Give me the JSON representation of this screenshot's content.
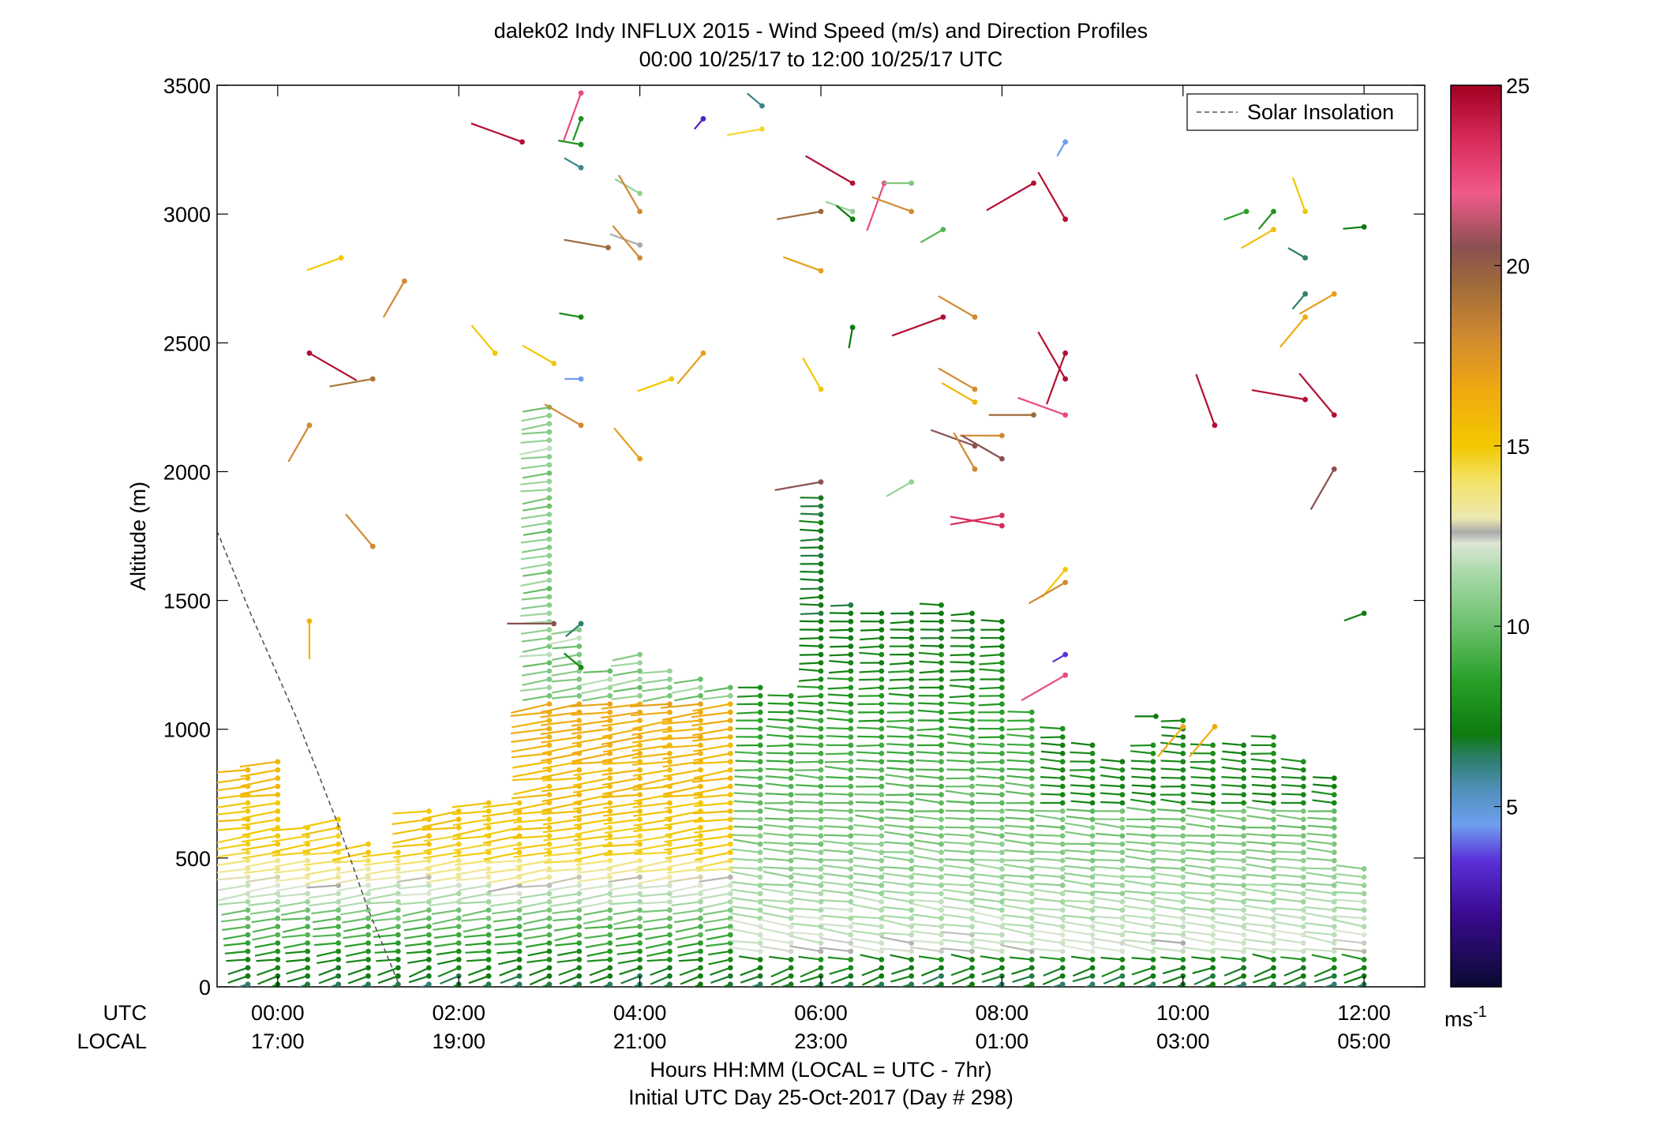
{
  "chart_data": {
    "type": "wind-barb-profile",
    "title": "dalek02 Indy INFLUX 2015 - Wind Speed (m/s) and Direction Profiles",
    "subtitle": "00:00 10/25/17 to 12:00 10/25/17  UTC",
    "ylabel": "Altitude (m)",
    "ylim": [
      0,
      3500
    ],
    "y_ticks": [
      "0",
      "500",
      "1000",
      "1500",
      "2000",
      "2500",
      "3000",
      "3500"
    ],
    "y_tick_values": [
      0,
      500,
      1000,
      1500,
      2000,
      2500,
      3000,
      3500
    ],
    "xlim_hours_utc": [
      -0.67,
      12.67
    ],
    "x_tick_hours_utc": [
      0,
      2,
      4,
      6,
      8,
      10,
      12
    ],
    "x_ticks_utc": [
      "00:00",
      "02:00",
      "04:00",
      "06:00",
      "08:00",
      "10:00",
      "12:00"
    ],
    "x_ticks_local": [
      "17:00",
      "19:00",
      "21:00",
      "23:00",
      "01:00",
      "03:00",
      "05:00"
    ],
    "utc_row_label": "UTC",
    "local_row_label": "LOCAL",
    "xlabel": "Hours HH:MM  (LOCAL = UTC - 7hr)",
    "footer": "Initial UTC Day 25-Oct-2017 (Day # 298)",
    "legend": {
      "label": "Solar Insolation",
      "placement": "top-right",
      "style": "dashed",
      "color": "#555555"
    },
    "colorbar": {
      "ticks": [
        "5",
        "10",
        "15",
        "20",
        "25"
      ],
      "tick_values": [
        5,
        10,
        15,
        20,
        25
      ],
      "range": [
        0,
        25
      ],
      "unit": "ms",
      "unit_exp": "-1",
      "stops": [
        {
          "v": 0,
          "c": "#0a0a30"
        },
        {
          "v": 2,
          "c": "#3a0a90"
        },
        {
          "v": 3.5,
          "c": "#5a30d8"
        },
        {
          "v": 4.5,
          "c": "#6f9fef"
        },
        {
          "v": 5.5,
          "c": "#4f8fb8"
        },
        {
          "v": 6.3,
          "c": "#2e7e6e"
        },
        {
          "v": 7,
          "c": "#0f7a0f"
        },
        {
          "v": 8.5,
          "c": "#28a028"
        },
        {
          "v": 10,
          "c": "#6cbf6c"
        },
        {
          "v": 11.5,
          "c": "#a9daa9"
        },
        {
          "v": 12.3,
          "c": "#dde6d5"
        },
        {
          "v": 12.6,
          "c": "#aaaaaa"
        },
        {
          "v": 13,
          "c": "#ece8b0"
        },
        {
          "v": 14,
          "c": "#f3e36a"
        },
        {
          "v": 15,
          "c": "#f2c800"
        },
        {
          "v": 16.5,
          "c": "#f0aa10"
        },
        {
          "v": 18,
          "c": "#d08a30"
        },
        {
          "v": 19.5,
          "c": "#9e6a3a"
        },
        {
          "v": 20.5,
          "c": "#8a5050"
        },
        {
          "v": 22,
          "c": "#f05a8a"
        },
        {
          "v": 23.5,
          "c": "#d82a5a"
        },
        {
          "v": 25,
          "c": "#a00020"
        }
      ]
    },
    "solar_insolation_line": [
      [
        -0.67,
        1770
      ],
      [
        -0.3,
        1450
      ],
      [
        0.2,
        1050
      ],
      [
        0.7,
        600
      ],
      [
        1.0,
        300
      ],
      [
        1.35,
        0
      ]
    ],
    "sample_times_hours_utc": [
      -0.33,
      0,
      0.33,
      0.67,
      1,
      1.33,
      1.67,
      2,
      2.33,
      2.67,
      3,
      3.33,
      3.67,
      4,
      4.33,
      4.67,
      5,
      5.33,
      5.67,
      6,
      6.33,
      6.67,
      7,
      7.33,
      7.67,
      8,
      8.33,
      8.67,
      9,
      9.33,
      9.67,
      10,
      10.33,
      10.67,
      11,
      11.33,
      11.67,
      12
    ],
    "profile_tops_m": [
      860,
      880,
      640,
      670,
      560,
      540,
      700,
      690,
      740,
      720,
      2260,
      1400,
      1240,
      1300,
      1240,
      1200,
      1180,
      1180,
      1150,
      1900,
      1490,
      1460,
      1450,
      1500,
      1460,
      1430,
      1080,
      1020,
      960,
      900,
      960,
      1050,
      940,
      960,
      970,
      900,
      840,
      460
    ],
    "sparse_barbs": [
      {
        "t": 0.35,
        "alt": 2460,
        "speed": 24.5,
        "dir": 120
      },
      {
        "t": 0.35,
        "alt": 2180,
        "speed": 18,
        "dir": 210
      },
      {
        "t": 0.35,
        "alt": 1420,
        "speed": 16,
        "dir": 180
      },
      {
        "t": 0.7,
        "alt": 2830,
        "speed": 15,
        "dir": 250
      },
      {
        "t": 1.05,
        "alt": 2360,
        "speed": 19,
        "dir": 260
      },
      {
        "t": 1.05,
        "alt": 1710,
        "speed": 18,
        "dir": 320
      },
      {
        "t": 1.4,
        "alt": 2740,
        "speed": 18,
        "dir": 210
      },
      {
        "t": 2.4,
        "alt": 2460,
        "speed": 15,
        "dir": 320
      },
      {
        "t": 2.7,
        "alt": 3280,
        "speed": 24.5,
        "dir": 290
      },
      {
        "t": 3.05,
        "alt": 2420,
        "speed": 15,
        "dir": 300
      },
      {
        "t": 3.05,
        "alt": 1410,
        "speed": 20.5,
        "dir": 270
      },
      {
        "t": 3.35,
        "alt": 3470,
        "speed": 22.5,
        "dir": 200
      },
      {
        "t": 3.35,
        "alt": 3370,
        "speed": 8,
        "dir": 200
      },
      {
        "t": 3.35,
        "alt": 3270,
        "speed": 8,
        "dir": 280
      },
      {
        "t": 3.35,
        "alt": 3180,
        "speed": 6,
        "dir": 300
      },
      {
        "t": 3.35,
        "alt": 2600,
        "speed": 7.5,
        "dir": 280
      },
      {
        "t": 3.35,
        "alt": 2360,
        "speed": 4.5,
        "dir": 270
      },
      {
        "t": 3.35,
        "alt": 2180,
        "speed": 18,
        "dir": 300
      },
      {
        "t": 3.35,
        "alt": 1410,
        "speed": 6.3,
        "dir": 230
      },
      {
        "t": 3.35,
        "alt": 1240,
        "speed": 7.5,
        "dir": 310
      },
      {
        "t": 3.65,
        "alt": 2870,
        "speed": 19.5,
        "dir": 280
      },
      {
        "t": 4.0,
        "alt": 3080,
        "speed": 11,
        "dir": 300
      },
      {
        "t": 4.0,
        "alt": 3010,
        "speed": 18,
        "dir": 330
      },
      {
        "t": 4.0,
        "alt": 2880,
        "speed": 12.6,
        "dir": 290
      },
      {
        "t": 4.0,
        "alt": 2830,
        "speed": 18,
        "dir": 320
      },
      {
        "t": 4.0,
        "alt": 2050,
        "speed": 17,
        "dir": 320
      },
      {
        "t": 4.35,
        "alt": 2360,
        "speed": 15,
        "dir": 250
      },
      {
        "t": 4.7,
        "alt": 3370,
        "speed": 3,
        "dir": 220
      },
      {
        "t": 4.7,
        "alt": 2460,
        "speed": 17,
        "dir": 220
      },
      {
        "t": 5.35,
        "alt": 3330,
        "speed": 14.5,
        "dir": 260
      },
      {
        "t": 5.35,
        "alt": 3420,
        "speed": 6,
        "dir": 310
      },
      {
        "t": 6.0,
        "alt": 3010,
        "speed": 19.5,
        "dir": 260
      },
      {
        "t": 6.0,
        "alt": 2780,
        "speed": 17,
        "dir": 290
      },
      {
        "t": 6.0,
        "alt": 2320,
        "speed": 15,
        "dir": 330
      },
      {
        "t": 6.0,
        "alt": 1960,
        "speed": 20.5,
        "dir": 260
      },
      {
        "t": 6.35,
        "alt": 3120,
        "speed": 24.5,
        "dir": 300
      },
      {
        "t": 6.35,
        "alt": 3010,
        "speed": 11,
        "dir": 290
      },
      {
        "t": 6.35,
        "alt": 2980,
        "speed": 7,
        "dir": 310
      },
      {
        "t": 6.35,
        "alt": 2560,
        "speed": 7,
        "dir": 190
      },
      {
        "t": 6.7,
        "alt": 3120,
        "speed": 22.5,
        "dir": 200
      },
      {
        "t": 7.0,
        "alt": 3120,
        "speed": 10.5,
        "dir": 270
      },
      {
        "t": 7.0,
        "alt": 3010,
        "speed": 18,
        "dir": 290
      },
      {
        "t": 7.0,
        "alt": 1960,
        "speed": 11,
        "dir": 240
      },
      {
        "t": 7.35,
        "alt": 2940,
        "speed": 9.5,
        "dir": 240
      },
      {
        "t": 7.35,
        "alt": 2600,
        "speed": 24.5,
        "dir": 250
      },
      {
        "t": 7.7,
        "alt": 2600,
        "speed": 18,
        "dir": 300
      },
      {
        "t": 7.7,
        "alt": 2320,
        "speed": 18,
        "dir": 300
      },
      {
        "t": 7.7,
        "alt": 2270,
        "speed": 16,
        "dir": 300
      },
      {
        "t": 7.7,
        "alt": 2100,
        "speed": 20.5,
        "dir": 290
      },
      {
        "t": 7.7,
        "alt": 2010,
        "speed": 18,
        "dir": 330
      },
      {
        "t": 8.0,
        "alt": 2140,
        "speed": 18,
        "dir": 270
      },
      {
        "t": 8.0,
        "alt": 2050,
        "speed": 20.5,
        "dir": 300
      },
      {
        "t": 8.0,
        "alt": 1830,
        "speed": 23.5,
        "dir": 260
      },
      {
        "t": 8.0,
        "alt": 1790,
        "speed": 23.5,
        "dir": 280
      },
      {
        "t": 8.35,
        "alt": 3120,
        "speed": 24.5,
        "dir": 240
      },
      {
        "t": 8.35,
        "alt": 2220,
        "speed": 19.5,
        "dir": 270
      },
      {
        "t": 8.7,
        "alt": 3280,
        "speed": 4.5,
        "dir": 210
      },
      {
        "t": 8.7,
        "alt": 2980,
        "speed": 24.5,
        "dir": 330
      },
      {
        "t": 8.7,
        "alt": 2460,
        "speed": 24.5,
        "dir": 200
      },
      {
        "t": 8.7,
        "alt": 2360,
        "speed": 24.5,
        "dir": 330
      },
      {
        "t": 8.7,
        "alt": 2220,
        "speed": 22.5,
        "dir": 290
      },
      {
        "t": 8.7,
        "alt": 1620,
        "speed": 15,
        "dir": 220
      },
      {
        "t": 8.7,
        "alt": 1570,
        "speed": 18,
        "dir": 240
      },
      {
        "t": 8.7,
        "alt": 1290,
        "speed": 3.5,
        "dir": 240
      },
      {
        "t": 8.7,
        "alt": 1210,
        "speed": 22.5,
        "dir": 240
      },
      {
        "t": 9.7,
        "alt": 1050,
        "speed": 7,
        "dir": 270
      },
      {
        "t": 10.0,
        "alt": 1010,
        "speed": 16.5,
        "dir": 220
      },
      {
        "t": 10.35,
        "alt": 2180,
        "speed": 24.5,
        "dir": 340
      },
      {
        "t": 10.35,
        "alt": 1010,
        "speed": 16.5,
        "dir": 220
      },
      {
        "t": 10.7,
        "alt": 3010,
        "speed": 8.5,
        "dir": 250
      },
      {
        "t": 11.0,
        "alt": 3010,
        "speed": 8,
        "dir": 220
      },
      {
        "t": 11.0,
        "alt": 2940,
        "speed": 15.5,
        "dir": 240
      },
      {
        "t": 11.35,
        "alt": 3010,
        "speed": 15,
        "dir": 340
      },
      {
        "t": 11.35,
        "alt": 2830,
        "speed": 6.3,
        "dir": 300
      },
      {
        "t": 11.35,
        "alt": 2690,
        "speed": 6.3,
        "dir": 220
      },
      {
        "t": 11.35,
        "alt": 2600,
        "speed": 16.5,
        "dir": 220
      },
      {
        "t": 11.35,
        "alt": 2280,
        "speed": 24.5,
        "dir": 280
      },
      {
        "t": 11.67,
        "alt": 2690,
        "speed": 17,
        "dir": 240
      },
      {
        "t": 11.67,
        "alt": 2220,
        "speed": 24.5,
        "dir": 320
      },
      {
        "t": 11.67,
        "alt": 2010,
        "speed": 20.5,
        "dir": 210
      },
      {
        "t": 12.0,
        "alt": 2950,
        "speed": 7,
        "dir": 265
      },
      {
        "t": 12.0,
        "alt": 1450,
        "speed": 7,
        "dir": 250
      }
    ]
  }
}
